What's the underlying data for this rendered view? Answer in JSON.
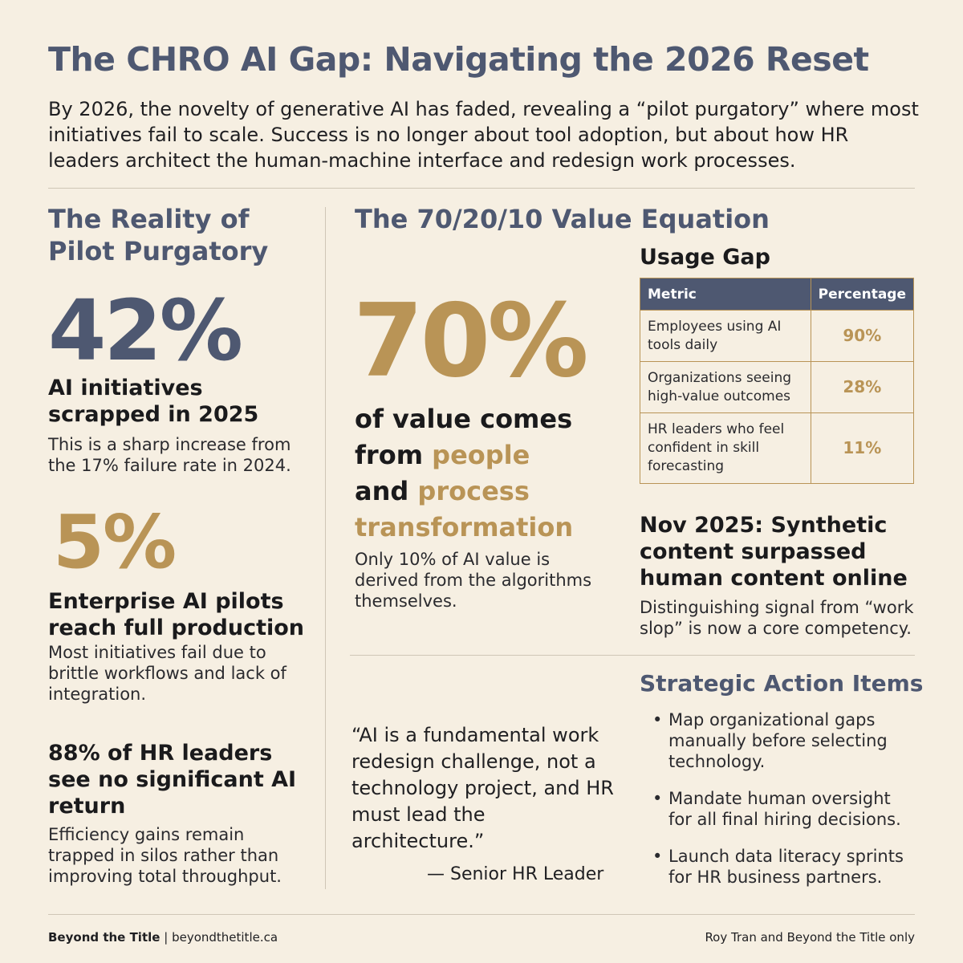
{
  "title": "The CHRO AI Gap: Navigating the 2026 Reset",
  "intro": "By 2026, the novelty of generative AI has faded, revealing a “pilot purgatory” where most initiatives fail to scale. Success is no longer about tool adoption, but about how HR leaders architect the human-machine interface and redesign work processes.",
  "left": {
    "heading": "The Reality of Pilot Purgatory",
    "stat1": {
      "value": "42%",
      "headline": "AI initiatives scrapped in 2025",
      "body": "This is a sharp increase from the 17% failure rate in 2024."
    },
    "stat2": {
      "value": "5%",
      "headline": "Enterprise AI pilots reach full production",
      "body": "Most initiatives fail due to brittle workflows and lack of integration."
    },
    "stat3": {
      "headline": "88% of HR leaders see no significant AI return",
      "body": "Efficiency gains remain trapped in silos rather than improving total throughput."
    }
  },
  "middle": {
    "heading": "The 70/20/10 Value Equation",
    "big_value": "70%",
    "line1": "of value comes",
    "line2_prefix": "from ",
    "line2_accent": "people",
    "line3_prefix": "and ",
    "line3_accent": "process",
    "line4_accent": "transformation",
    "body": "Only 10% of AI value is derived from the algorithms themselves.",
    "quote": "“AI is a fundamental work redesign challenge, not a technology project, and HR must lead the architecture.”",
    "attribution": "— Senior HR Leader"
  },
  "usage_gap": {
    "heading": "Usage Gap",
    "columns": [
      "Metric",
      "Percentage"
    ],
    "rows": [
      {
        "metric": "Employees using AI tools daily",
        "pct": "90%"
      },
      {
        "metric": "Organizations seeing high-value outcomes",
        "pct": "28%"
      },
      {
        "metric": "HR leaders who feel confident in skill forecasting",
        "pct": "11%"
      }
    ]
  },
  "synthetic": {
    "headline": "Nov 2025: Synthetic content surpassed human content online",
    "body": "Distinguishing signal from “work slop” is now a core competency."
  },
  "actions": {
    "heading": "Strategic Action Items",
    "bullet": "•",
    "items": [
      "Map organizational gaps manually before selecting technology.",
      "Mandate human oversight for all final hiring decisions.",
      "Launch data literacy sprints for HR business partners."
    ]
  },
  "footer": {
    "brand": "Beyond the Title",
    "separator": "|",
    "site": "beyondthetitle.ca",
    "rights": "Roy Tran and Beyond the Title only"
  },
  "colors": {
    "navy": "#4e5871",
    "gold": "#b99456",
    "background": "#f6efe2"
  }
}
